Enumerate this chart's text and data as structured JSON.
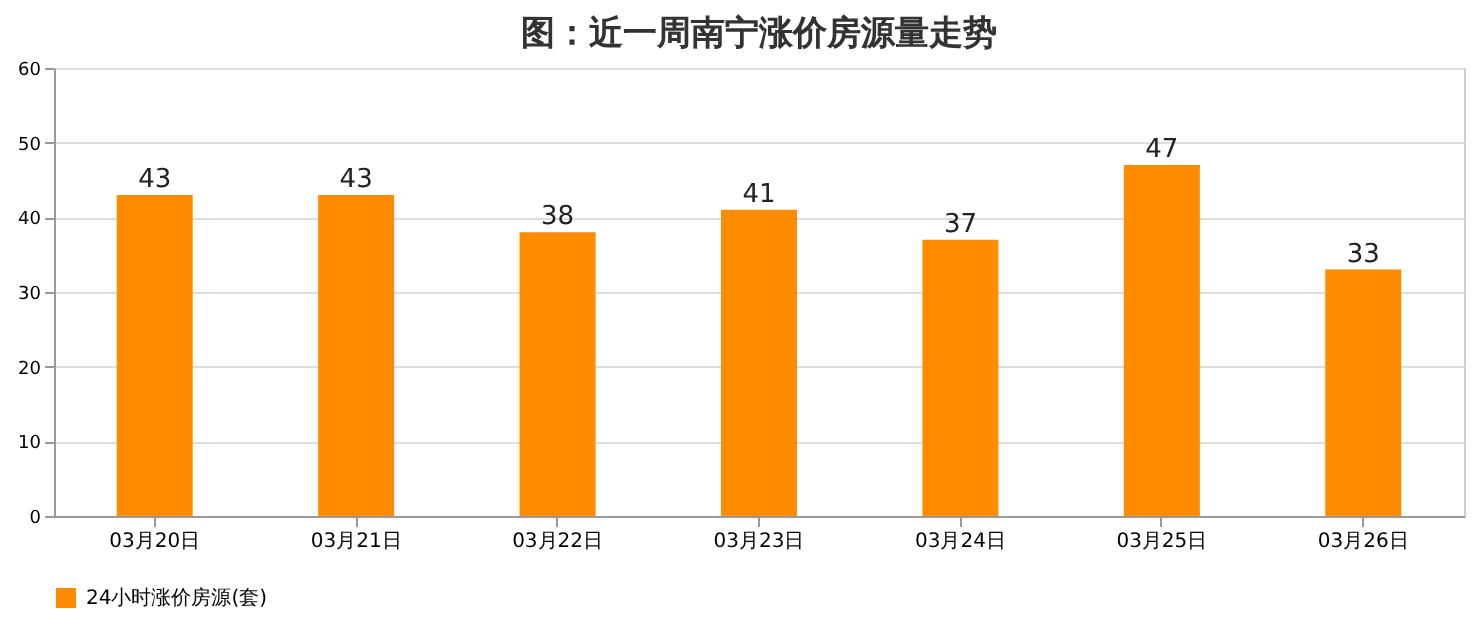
{
  "chart_data": {
    "type": "bar",
    "title": "图：近一周南宁涨价房源量走势",
    "categories": [
      "03月20日",
      "03月21日",
      "03月22日",
      "03月23日",
      "03月24日",
      "03月25日",
      "03月26日"
    ],
    "series": [
      {
        "name": "24小时涨价房源(套)",
        "color": "#ff8c00",
        "values": [
          43,
          43,
          38,
          41,
          37,
          47,
          33
        ]
      }
    ],
    "ylim": [
      0,
      60
    ],
    "yticks": [
      0,
      10,
      20,
      30,
      40,
      50,
      60
    ],
    "grid": "y",
    "legend": "bottom",
    "data_labels": true
  }
}
